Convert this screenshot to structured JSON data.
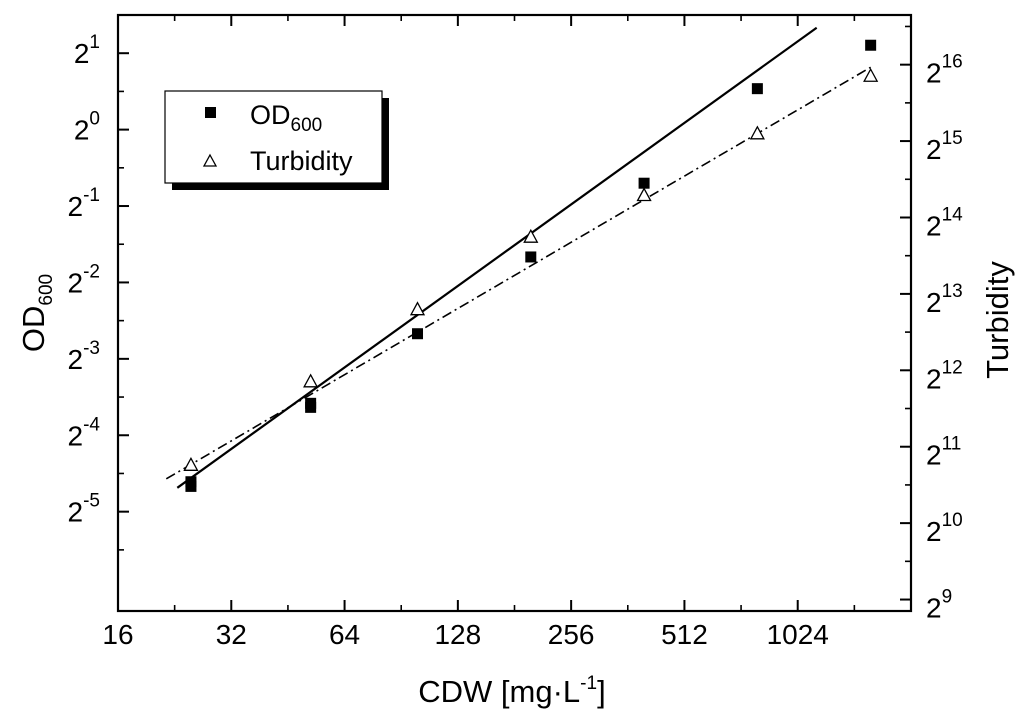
{
  "chart_data": {
    "type": "scatter",
    "x_label": {
      "main": "CDW [mg·L",
      "sup": "-1",
      "close": "]"
    },
    "y_label_left": {
      "main": "OD",
      "sub": "600"
    },
    "y_label_right": "Turbidity",
    "x_scale": "log2",
    "x_range": [
      16,
      2048
    ],
    "x_ticks": [
      {
        "value": 16,
        "label": "16"
      },
      {
        "value": 32,
        "label": "32"
      },
      {
        "value": 64,
        "label": "64"
      },
      {
        "value": 128,
        "label": "128"
      },
      {
        "value": 256,
        "label": "256"
      },
      {
        "value": 512,
        "label": "512"
      },
      {
        "value": 1024,
        "label": "1024"
      }
    ],
    "y_left_scale": "log2",
    "y_left_range_exp": [
      -6.3,
      1.5
    ],
    "y_left_ticks": [
      {
        "exp": 1,
        "base": "2",
        "sup": "1"
      },
      {
        "exp": 0,
        "base": "2",
        "sup": "0"
      },
      {
        "exp": -1,
        "base": "2",
        "sup": "-1"
      },
      {
        "exp": -2,
        "base": "2",
        "sup": "-2"
      },
      {
        "exp": -3,
        "base": "2",
        "sup": "-3"
      },
      {
        "exp": -4,
        "base": "2",
        "sup": "-4"
      },
      {
        "exp": -5,
        "base": "2",
        "sup": "-5"
      }
    ],
    "y_right_scale": "log2",
    "y_right_range_exp": [
      8.85,
      16.65
    ],
    "y_right_ticks": [
      {
        "exp": 16,
        "base": "2",
        "sup": "16"
      },
      {
        "exp": 15,
        "base": "2",
        "sup": "15"
      },
      {
        "exp": 14,
        "base": "2",
        "sup": "14"
      },
      {
        "exp": 13,
        "base": "2",
        "sup": "13"
      },
      {
        "exp": 12,
        "base": "2",
        "sup": "12"
      },
      {
        "exp": 11,
        "base": "2",
        "sup": "11"
      },
      {
        "exp": 10,
        "base": "2",
        "sup": "10"
      },
      {
        "exp": 9,
        "base": "2",
        "sup": "9"
      }
    ],
    "legend": {
      "position": "top-left",
      "entries": [
        {
          "label": "OD",
          "sub": "600",
          "marker": "filled-square"
        },
        {
          "label": "Turbidity",
          "sub": "",
          "marker": "open-triangle"
        }
      ]
    },
    "series": [
      {
        "name": "OD600",
        "axis": "left",
        "marker": "filled-square",
        "x": [
          25,
          25,
          52,
          52,
          100,
          200,
          400,
          800,
          1600
        ],
        "y": [
          0.041,
          0.0393,
          0.0835,
          0.0805,
          0.157,
          0.315,
          0.615,
          1.45,
          2.15
        ]
      },
      {
        "name": "Turbidity",
        "axis": "right",
        "marker": "open-triangle",
        "x": [
          25,
          52,
          100,
          200,
          400,
          800,
          1600
        ],
        "y": [
          1730,
          3690,
          7100,
          13700,
          20000,
          35000,
          59000
        ]
      }
    ],
    "fit_lines": [
      {
        "series": "OD600",
        "axis": "left",
        "style": "solid",
        "x": [
          23,
          1150
        ],
        "y": [
          0.0388,
          2.52
        ]
      },
      {
        "series": "Turbidity",
        "axis": "right",
        "style": "dash-dot",
        "x": [
          21.5,
          1600
        ],
        "y": [
          1530,
          64000
        ]
      }
    ]
  }
}
